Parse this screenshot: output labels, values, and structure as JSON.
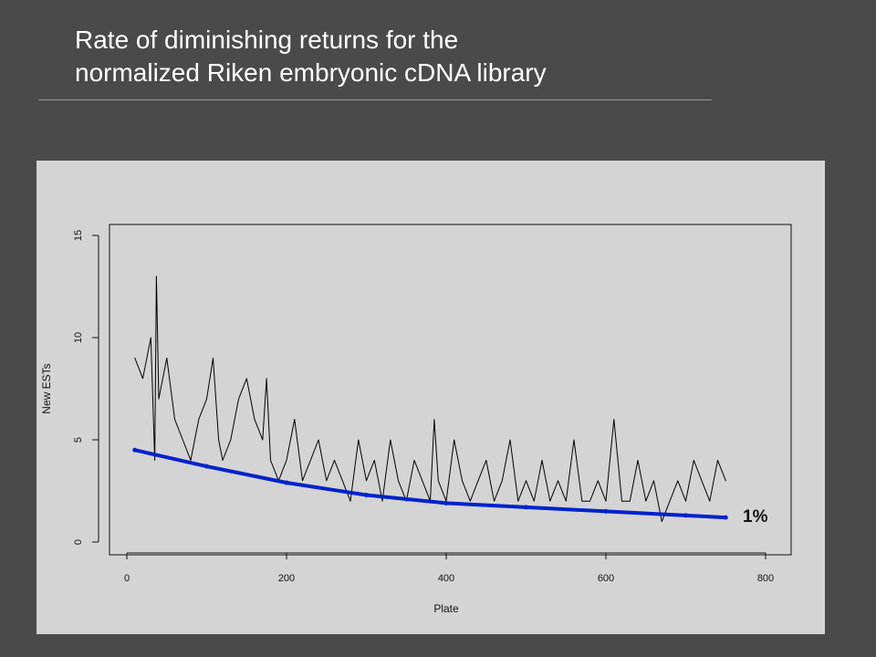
{
  "slide": {
    "title_line1": "Rate of diminishing returns for the",
    "title_line2": "normalized Riken embryonic cDNA library"
  },
  "chart_data": {
    "type": "line",
    "title": "Rate of diminishing returns for the normalized Riken embryonic cDNA library",
    "xlabel": "Plate",
    "ylabel": "New ESTs",
    "xlim": [
      0,
      800
    ],
    "ylim": [
      0,
      15
    ],
    "xticks": [
      0,
      200,
      400,
      600,
      800
    ],
    "yticks": [
      0,
      5,
      10,
      15
    ],
    "grid": false,
    "series": [
      {
        "color": "#000000",
        "note_shape": "noisy per-plate counts, plates 10-750",
        "x": [
          10,
          20,
          30,
          35,
          37,
          40,
          50,
          60,
          70,
          80,
          90,
          100,
          108,
          115,
          120,
          130,
          140,
          150,
          160,
          170,
          175,
          180,
          190,
          200,
          210,
          220,
          230,
          240,
          250,
          260,
          270,
          280,
          290,
          300,
          310,
          320,
          330,
          340,
          350,
          360,
          370,
          380,
          385,
          390,
          400,
          410,
          420,
          430,
          440,
          450,
          460,
          470,
          480,
          490,
          500,
          510,
          520,
          530,
          540,
          550,
          560,
          570,
          580,
          590,
          600,
          610,
          620,
          630,
          640,
          650,
          660,
          670,
          680,
          690,
          700,
          710,
          720,
          730,
          740,
          750
        ],
        "values": [
          9,
          8,
          10,
          4,
          13,
          7,
          9,
          6,
          5,
          4,
          6,
          7,
          9,
          5,
          4,
          5,
          7,
          8,
          6,
          5,
          8,
          4,
          3,
          4,
          6,
          3,
          4,
          5,
          3,
          4,
          3,
          2,
          5,
          3,
          4,
          2,
          5,
          3,
          2,
          4,
          3,
          2,
          6,
          3,
          2,
          5,
          3,
          2,
          3,
          4,
          2,
          3,
          5,
          2,
          3,
          2,
          4,
          2,
          3,
          2,
          5,
          2,
          2,
          3,
          2,
          6,
          2,
          2,
          4,
          2,
          3,
          1,
          2,
          3,
          2,
          4,
          3,
          2,
          4,
          3
        ]
      },
      {
        "color": "#0022cc",
        "note_shape": "smoothed trend curve",
        "x": [
          10,
          100,
          200,
          300,
          400,
          500,
          600,
          700,
          750
        ],
        "values": [
          4.5,
          3.7,
          2.9,
          2.3,
          1.9,
          1.7,
          1.5,
          1.3,
          1.2
        ]
      }
    ],
    "annotations": [
      {
        "text": "1%",
        "x": 780,
        "y": 1.2
      }
    ]
  }
}
